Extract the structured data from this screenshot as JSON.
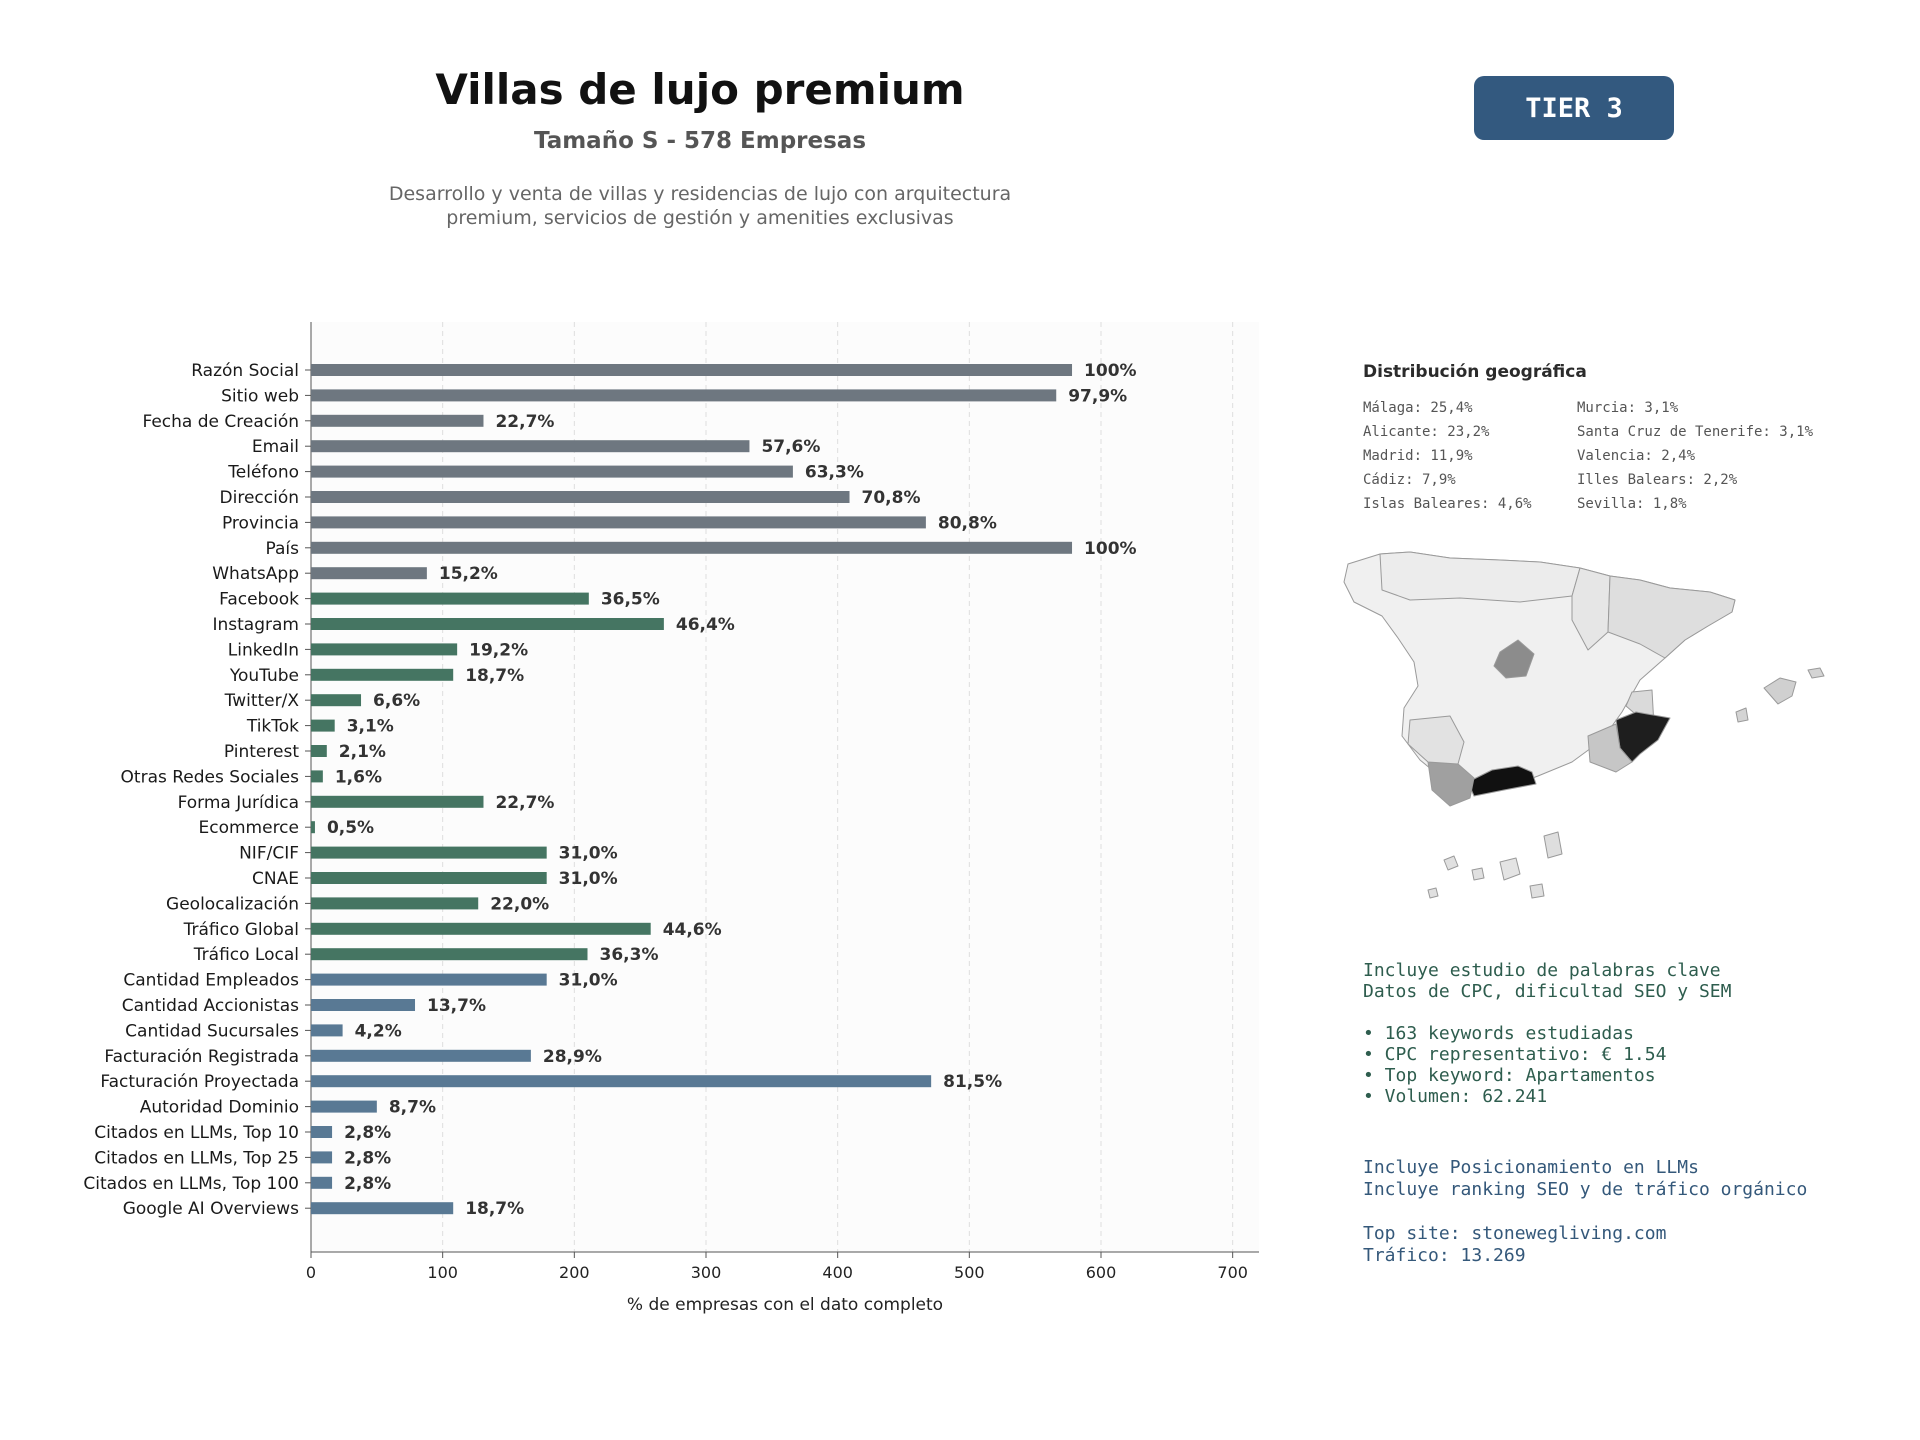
{
  "header": {
    "title": "Villas de lujo premium",
    "subtitle": "Tamaño S - 578 Empresas",
    "description_line1": "Desarrollo y venta de villas y residencias de lujo con arquitectura",
    "description_line2": "premium, servicios de gestión y amenities exclusivas"
  },
  "tier_badge": "TIER 3",
  "colors": {
    "gray": "#6e7780",
    "green": "#457562",
    "blue": "#597994",
    "badge": "#33597f"
  },
  "chart_data": {
    "type": "bar",
    "orientation": "horizontal",
    "xlabel": "% de empresas con el dato completo",
    "xlim": [
      0,
      720
    ],
    "xticks": [
      0,
      100,
      200,
      300,
      400,
      500,
      600,
      700
    ],
    "grid": "x-dashed",
    "categories": [
      "Razón Social",
      "Sitio web",
      "Fecha de Creación",
      "Email",
      "Teléfono",
      "Dirección",
      "Provincia",
      "País",
      "WhatsApp",
      "Facebook",
      "Instagram",
      "LinkedIn",
      "YouTube",
      "Twitter/X",
      "TikTok",
      "Pinterest",
      "Otras Redes Sociales",
      "Forma Jurídica",
      "Ecommerce",
      "NIF/CIF",
      "CNAE",
      "Geolocalización",
      "Tráfico Global",
      "Tráfico Local",
      "Cantidad Empleados",
      "Cantidad Accionistas",
      "Cantidad Sucursales",
      "Facturación Registrada",
      "Facturación Proyectada",
      "Autoridad Dominio",
      "Citados en LLMs, Top 10",
      "Citados en LLMs, Top 25",
      "Citados en LLMs, Top 100",
      "Google AI Overviews"
    ],
    "values": [
      578,
      566,
      131,
      333,
      366,
      409,
      467,
      578,
      88,
      211,
      268,
      111,
      108,
      38,
      18,
      12,
      9,
      131,
      3,
      179,
      179,
      127,
      258,
      210,
      179,
      79,
      24,
      167,
      471,
      50,
      16,
      16,
      16,
      108
    ],
    "labels": [
      "100%",
      "97,9%",
      "22,7%",
      "57,6%",
      "63,3%",
      "70,8%",
      "80,8%",
      "100%",
      "15,2%",
      "36,5%",
      "46,4%",
      "19,2%",
      "18,7%",
      "6,6%",
      "3,1%",
      "2,1%",
      "1,6%",
      "22,7%",
      "0,5%",
      "31,0%",
      "31,0%",
      "22,0%",
      "44,6%",
      "36,3%",
      "31,0%",
      "13,7%",
      "4,2%",
      "28,9%",
      "81,5%",
      "8,7%",
      "2,8%",
      "2,8%",
      "2,8%",
      "18,7%"
    ],
    "groups": [
      "gray",
      "gray",
      "gray",
      "gray",
      "gray",
      "gray",
      "gray",
      "gray",
      "gray",
      "green",
      "green",
      "green",
      "green",
      "green",
      "green",
      "green",
      "green",
      "green",
      "green",
      "green",
      "green",
      "green",
      "green",
      "green",
      "blue",
      "blue",
      "blue",
      "blue",
      "blue",
      "blue",
      "blue",
      "blue",
      "blue",
      "blue"
    ]
  },
  "geo": {
    "title": "Distribución geográfica",
    "items": [
      "Málaga: 25,4%",
      "Murcia: 3,1%",
      "Alicante: 23,2%",
      "Santa Cruz de Tenerife: 3,1%",
      "Madrid: 11,9%",
      "Valencia: 2,4%",
      "Cádiz: 7,9%",
      "Illes Balears: 2,2%",
      "Islas Baleares: 4,6%",
      "Sevilla: 1,8%"
    ]
  },
  "seo": {
    "line1": "Incluye estudio de palabras clave",
    "line2": "Datos de CPC, dificultad SEO y SEM",
    "bullets": [
      "• 163 keywords estudiadas",
      "• CPC representativo: € 1.54",
      "• Top keyword: Apartamentos",
      "• Volumen: 62.241"
    ]
  },
  "llm": {
    "line1": "Incluye Posicionamiento en LLMs",
    "line2": "Incluye ranking SEO y de tráfico orgánico",
    "top_site": "Top site: stonewegliving.com",
    "traffic": "Tráfico: 13.269"
  }
}
